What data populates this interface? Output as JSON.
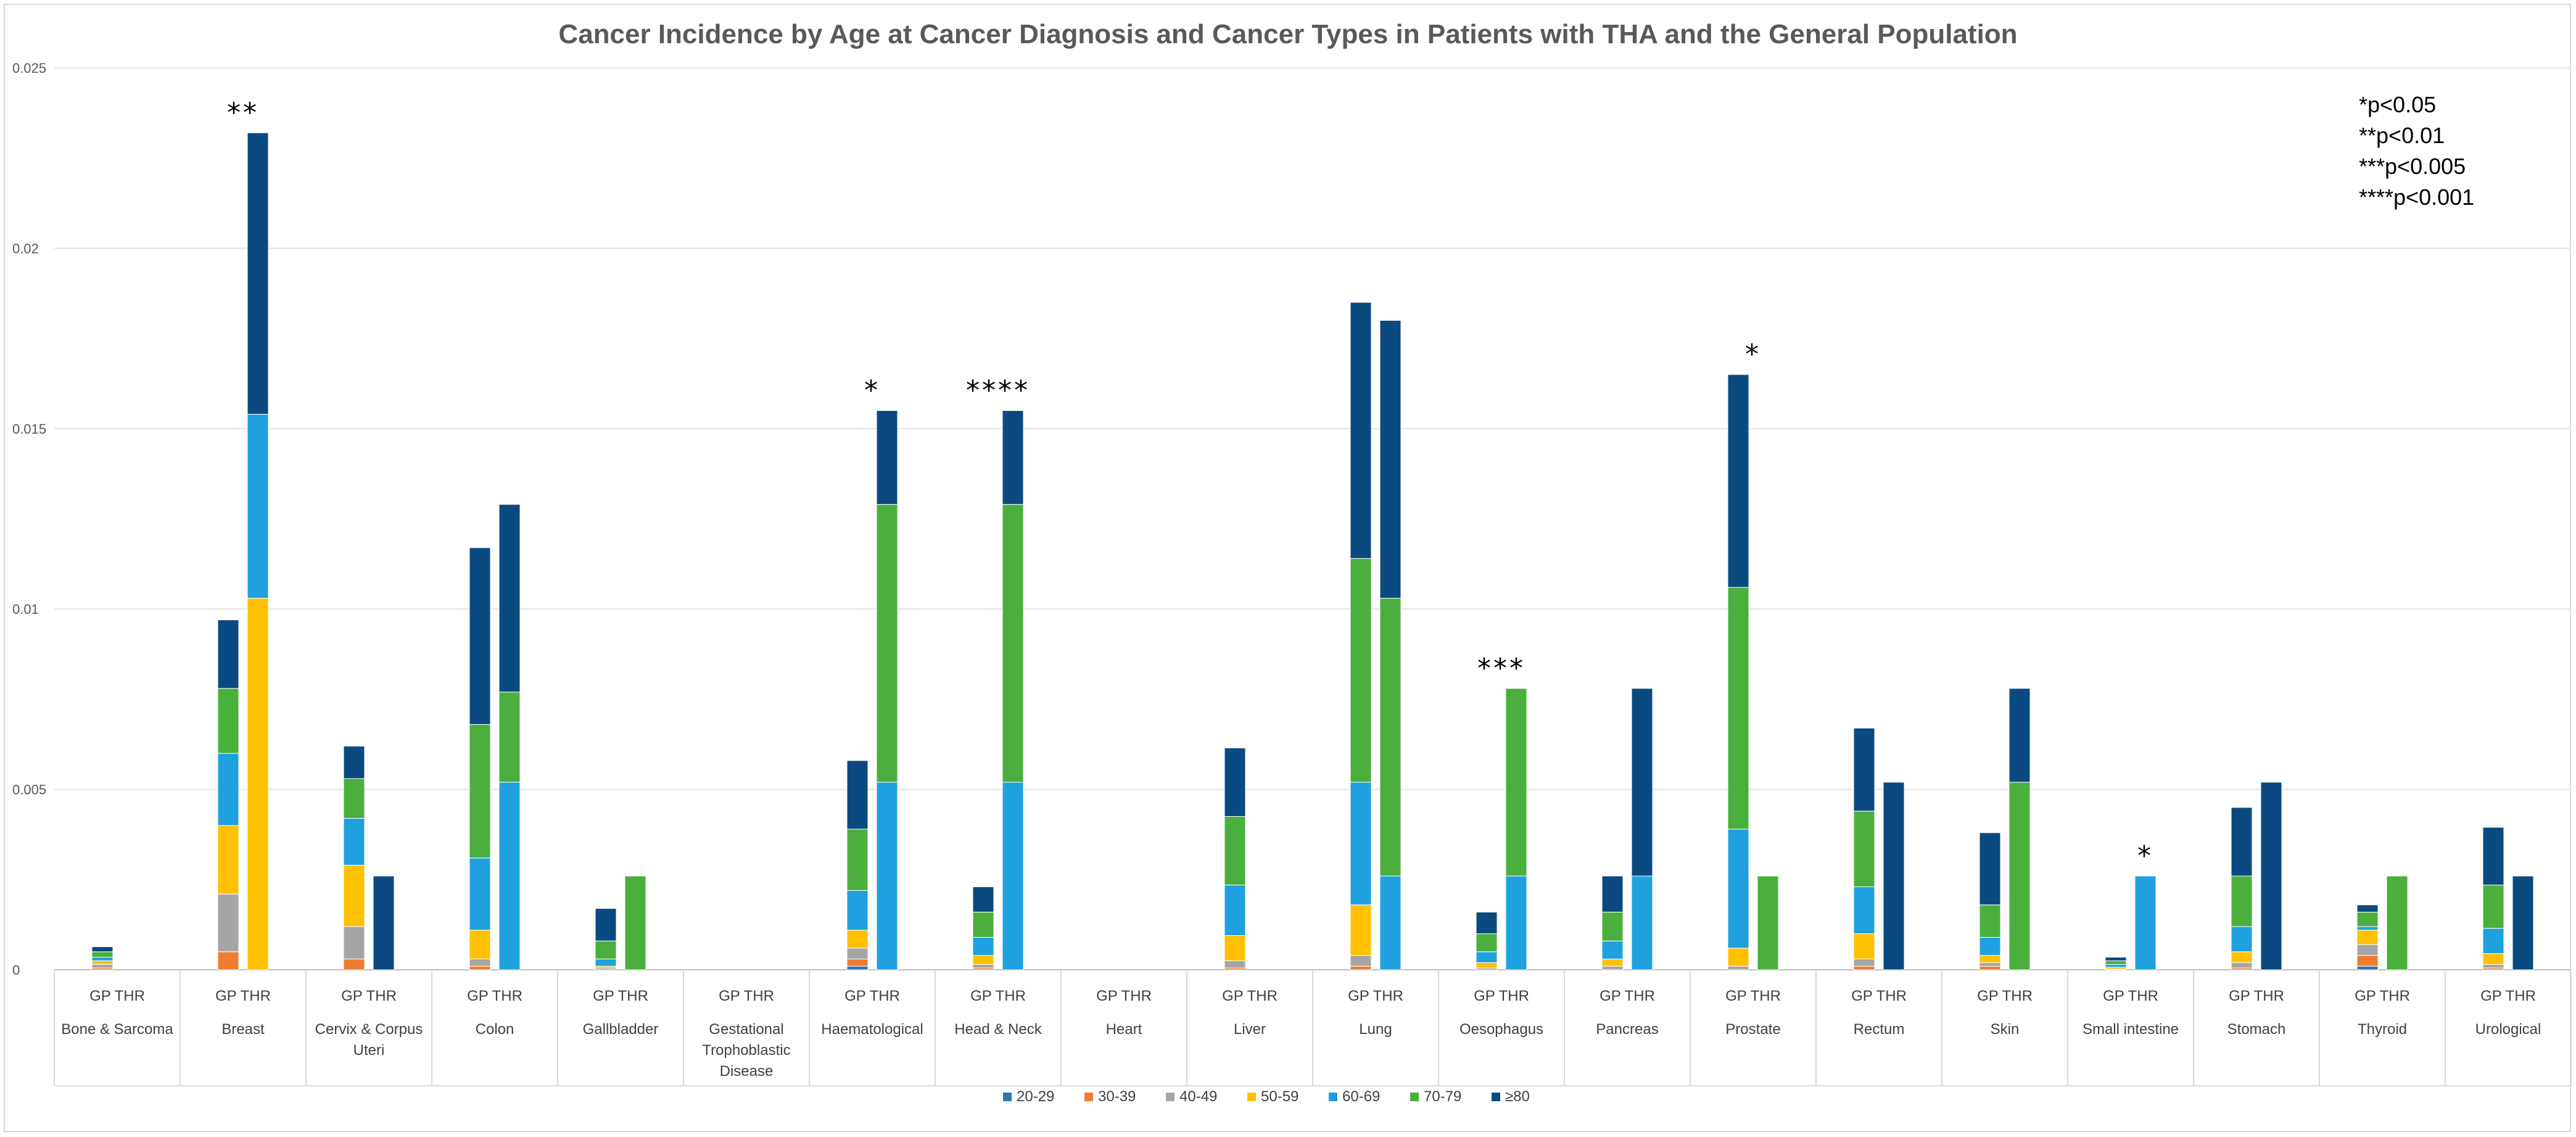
{
  "chart_data": {
    "type": "bar",
    "stacked": true,
    "title": "Cancer Incidence by Age at Cancer Diagnosis and Cancer Types in Patients with THA and the General Population",
    "xlabel": "",
    "ylabel": "",
    "ylim": [
      0,
      0.025
    ],
    "y_ticks": [
      0,
      0.005,
      0.01,
      0.015,
      0.02,
      0.025
    ],
    "y_tick_labels": [
      "0",
      "0.005",
      "0.01",
      "0.015",
      "0.02",
      "0.025"
    ],
    "grid": true,
    "legend_position": "bottom",
    "group_label": "GP THR",
    "bar_labels": [
      "GP",
      "THR"
    ],
    "series": [
      {
        "name": "20-29",
        "color": "#2E75B6"
      },
      {
        "name": "30-39",
        "color": "#ED7D31"
      },
      {
        "name": "40-49",
        "color": "#A5A5A5"
      },
      {
        "name": "50-59",
        "color": "#FFC000"
      },
      {
        "name": "60-69",
        "color": "#1FA1DF"
      },
      {
        "name": "70-79",
        "color": "#4AAF3D"
      },
      {
        "name": "≥80",
        "color": "#0B4A80"
      }
    ],
    "categories": [
      {
        "name": "Bone & Sarcoma",
        "gp": [
          0,
          5e-05,
          0.0001,
          0.0001,
          0.0001,
          0.00015,
          0.00014
        ],
        "thr": [
          0,
          0,
          0,
          0,
          0,
          0,
          0
        ],
        "sig": ""
      },
      {
        "name": "Breast",
        "gp": [
          0,
          0.0005,
          0.0016,
          0.0019,
          0.002,
          0.0018,
          0.0019
        ],
        "thr": [
          0,
          0,
          0,
          0.0103,
          0.0051,
          0,
          0.0078
        ],
        "sig": "**"
      },
      {
        "name": "Cervix & Corpus Uteri",
        "gp": [
          0,
          0.0003,
          0.0009,
          0.0017,
          0.0013,
          0.0011,
          0.0009
        ],
        "thr": [
          0,
          0,
          0,
          0,
          0,
          0,
          0.0026
        ],
        "sig": ""
      },
      {
        "name": "Colon",
        "gp": [
          0,
          0.0001,
          0.0002,
          0.0008,
          0.002,
          0.0037,
          0.0049
        ],
        "thr": [
          0,
          0,
          0,
          0,
          0.0052,
          0.0025,
          0.0052
        ],
        "sig": ""
      },
      {
        "name": "Gallbladder",
        "gp": [
          0,
          0,
          5e-05,
          5e-05,
          0.0002,
          0.0005,
          0.0009
        ],
        "thr": [
          0,
          0,
          0,
          0,
          0,
          0.0026,
          0
        ],
        "sig": ""
      },
      {
        "name": "Gestational Trophoblastic Disease",
        "gp": [
          0,
          0,
          0,
          0,
          0,
          0,
          0
        ],
        "thr": [
          0,
          0,
          0,
          0,
          0,
          0,
          0
        ],
        "sig": ""
      },
      {
        "name": "Haematological",
        "gp": [
          0.0001,
          0.0002,
          0.0003,
          0.0005,
          0.0011,
          0.0017,
          0.0019
        ],
        "thr": [
          0,
          0,
          0,
          0,
          0.0052,
          0.0077,
          0.0026
        ],
        "sig": "*"
      },
      {
        "name": "Head & Neck",
        "gp": [
          0,
          5e-05,
          0.0001,
          0.00025,
          0.0005,
          0.0007,
          0.0007
        ],
        "thr": [
          0,
          0,
          0,
          0,
          0.0052,
          0.0077,
          0.0026
        ],
        "sig": "****"
      },
      {
        "name": "Heart",
        "gp": [
          0,
          0,
          0,
          0,
          0,
          0,
          0
        ],
        "thr": [
          0,
          0,
          0,
          0,
          0,
          0,
          0
        ],
        "sig": ""
      },
      {
        "name": "Liver",
        "gp": [
          0,
          5e-05,
          0.0002,
          0.0007,
          0.0014,
          0.0019,
          0.0019
        ],
        "thr": [
          0,
          0,
          0,
          0,
          0,
          0,
          0
        ],
        "sig": ""
      },
      {
        "name": "Lung",
        "gp": [
          0,
          0.0001,
          0.0003,
          0.0014,
          0.0034,
          0.0062,
          0.0071
        ],
        "thr": [
          0,
          0,
          0,
          0,
          0.0026,
          0.0077,
          0.0077
        ],
        "sig": ""
      },
      {
        "name": "Oesophagus",
        "gp": [
          0,
          0,
          5e-05,
          0.00015,
          0.0003,
          0.0005,
          0.0006
        ],
        "thr": [
          0,
          0,
          0,
          0,
          0.0026,
          0.0052,
          0
        ],
        "sig": "***"
      },
      {
        "name": "Pancreas",
        "gp": [
          0,
          0,
          0.0001,
          0.0002,
          0.0005,
          0.0008,
          0.001
        ],
        "thr": [
          0,
          0,
          0,
          0,
          0.0026,
          0,
          0.0052
        ],
        "sig": ""
      },
      {
        "name": "Prostate",
        "gp": [
          0,
          0,
          0.0001,
          0.0005,
          0.0033,
          0.0067,
          0.0059
        ],
        "thr": [
          0,
          0,
          0,
          0,
          0,
          0.0026,
          0
        ],
        "sig": "*"
      },
      {
        "name": "Rectum",
        "gp": [
          0,
          0.0001,
          0.0002,
          0.0007,
          0.0013,
          0.0021,
          0.0023
        ],
        "thr": [
          0,
          0,
          0,
          0,
          0,
          0,
          0.0052
        ],
        "sig": ""
      },
      {
        "name": "Skin",
        "gp": [
          0,
          0.0001,
          0.0001,
          0.0002,
          0.0005,
          0.0009,
          0.002
        ],
        "thr": [
          0,
          0,
          0,
          0,
          0,
          0.0052,
          0.0026
        ],
        "sig": ""
      },
      {
        "name": "Small intestine",
        "gp": [
          0,
          0,
          2e-05,
          5e-05,
          8e-05,
          0.0001,
          0.0001
        ],
        "thr": [
          0,
          0,
          0,
          0,
          0.0026,
          0,
          0
        ],
        "sig": "*"
      },
      {
        "name": "Stomach",
        "gp": [
          0,
          5e-05,
          0.00015,
          0.0003,
          0.0007,
          0.0014,
          0.0019
        ],
        "thr": [
          0,
          0,
          0,
          0,
          0,
          0,
          0.0052
        ],
        "sig": ""
      },
      {
        "name": "Thyroid",
        "gp": [
          0.0001,
          0.0003,
          0.0003,
          0.0004,
          0.0001,
          0.0004,
          0.0002
        ],
        "thr": [
          0,
          0,
          0,
          0,
          0,
          0.0026,
          0
        ],
        "sig": ""
      },
      {
        "name": "Urological",
        "gp": [
          0,
          5e-05,
          0.0001,
          0.0003,
          0.0007,
          0.0012,
          0.0016
        ],
        "thr": [
          0,
          0,
          0,
          0,
          0,
          0,
          0.0026
        ],
        "sig": ""
      }
    ],
    "significance_notes": [
      "*p<0.05",
      "**p<0.01",
      "***p<0.005",
      "****p<0.001"
    ]
  }
}
